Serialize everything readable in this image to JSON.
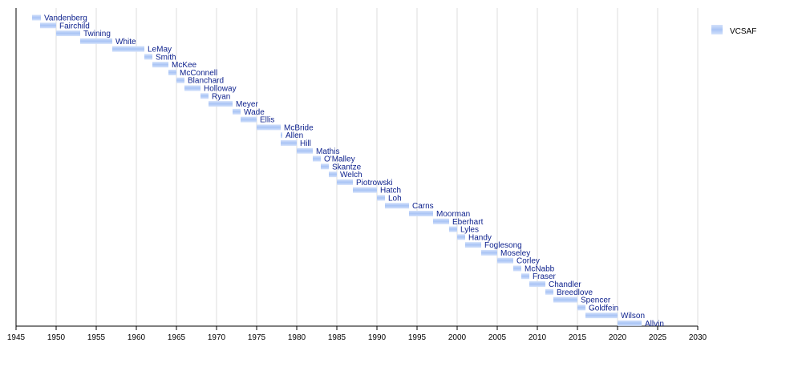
{
  "chart_data": {
    "type": "bar",
    "orientation": "horizontal-timeline",
    "title": "",
    "xlabel": "",
    "ylabel": "",
    "xlim": [
      1945,
      2030
    ],
    "grid": true,
    "legend_position": "top-right",
    "x_ticks": [
      "1945",
      "1950",
      "1955",
      "1960",
      "1965",
      "1970",
      "1975",
      "1980",
      "1985",
      "1990",
      "1995",
      "2000",
      "2005",
      "2010",
      "2015",
      "2020",
      "2025",
      "2030"
    ],
    "series": [
      {
        "name": "VCSAF",
        "color": "#a9c4f5",
        "items": [
          {
            "label": "Vandenberg",
            "start": 1947.0,
            "end": 1948.1
          },
          {
            "label": "Fairchild",
            "start": 1948.0,
            "end": 1950.0
          },
          {
            "label": "Twining",
            "start": 1950.0,
            "end": 1953.0
          },
          {
            "label": "White",
            "start": 1953.0,
            "end": 1957.0
          },
          {
            "label": "LeMay",
            "start": 1957.0,
            "end": 1961.0
          },
          {
            "label": "Smith",
            "start": 1961.0,
            "end": 1962.0
          },
          {
            "label": "McKee",
            "start": 1962.0,
            "end": 1964.0
          },
          {
            "label": "McConnell",
            "start": 1964.0,
            "end": 1965.0
          },
          {
            "label": "Blanchard",
            "start": 1965.0,
            "end": 1966.0
          },
          {
            "label": "Holloway",
            "start": 1966.0,
            "end": 1968.0
          },
          {
            "label": "Ryan",
            "start": 1968.0,
            "end": 1969.0
          },
          {
            "label": "Meyer",
            "start": 1969.0,
            "end": 1972.0
          },
          {
            "label": "Wade",
            "start": 1972.0,
            "end": 1973.0
          },
          {
            "label": "Ellis",
            "start": 1973.0,
            "end": 1975.0
          },
          {
            "label": "McBride",
            "start": 1975.0,
            "end": 1978.0
          },
          {
            "label": "Allen",
            "start": 1978.0,
            "end": 1978.2
          },
          {
            "label": "Hill",
            "start": 1978.0,
            "end": 1980.0
          },
          {
            "label": "Mathis",
            "start": 1980.0,
            "end": 1982.0
          },
          {
            "label": "O'Malley",
            "start": 1982.0,
            "end": 1983.0
          },
          {
            "label": "Skantze",
            "start": 1983.0,
            "end": 1984.0
          },
          {
            "label": "Welch",
            "start": 1984.0,
            "end": 1985.0
          },
          {
            "label": "Piotrowski",
            "start": 1985.0,
            "end": 1987.0
          },
          {
            "label": "Hatch",
            "start": 1987.0,
            "end": 1990.0
          },
          {
            "label": "Loh",
            "start": 1990.0,
            "end": 1991.0
          },
          {
            "label": "Carns",
            "start": 1991.0,
            "end": 1994.0
          },
          {
            "label": "Moorman",
            "start": 1994.0,
            "end": 1997.0
          },
          {
            "label": "Eberhart",
            "start": 1997.0,
            "end": 1999.0
          },
          {
            "label": "Lyles",
            "start": 1999.0,
            "end": 2000.0
          },
          {
            "label": "Handy",
            "start": 2000.0,
            "end": 2001.0
          },
          {
            "label": "Foglesong",
            "start": 2001.0,
            "end": 2003.0
          },
          {
            "label": "Moseley",
            "start": 2003.0,
            "end": 2005.0
          },
          {
            "label": "Corley",
            "start": 2005.0,
            "end": 2007.0
          },
          {
            "label": "McNabb",
            "start": 2007.0,
            "end": 2008.0
          },
          {
            "label": "Fraser",
            "start": 2008.0,
            "end": 2009.0
          },
          {
            "label": "Chandler",
            "start": 2009.0,
            "end": 2011.0
          },
          {
            "label": "Breedlove",
            "start": 2011.0,
            "end": 2012.0
          },
          {
            "label": "Spencer",
            "start": 2012.0,
            "end": 2015.0
          },
          {
            "label": "Goldfein",
            "start": 2015.0,
            "end": 2016.0
          },
          {
            "label": "Wilson",
            "start": 2016.0,
            "end": 2020.0
          },
          {
            "label": "Allvin",
            "start": 2020.0,
            "end": 2023.0
          }
        ]
      }
    ]
  }
}
